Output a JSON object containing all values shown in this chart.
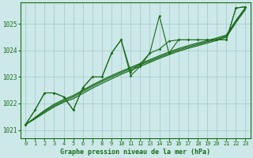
{
  "background_color": "#cce8e8",
  "grid_color": "#aacccc",
  "line_color": "#1a6b1a",
  "xlabel": "Graphe pression niveau de la mer (hPa)",
  "xlim": [
    -0.5,
    23.5
  ],
  "ylim": [
    1020.7,
    1025.8
  ],
  "yticks": [
    1021,
    1022,
    1023,
    1024,
    1025
  ],
  "xticks": [
    0,
    1,
    2,
    3,
    4,
    5,
    6,
    7,
    8,
    9,
    10,
    11,
    12,
    13,
    14,
    15,
    16,
    17,
    18,
    19,
    20,
    21,
    22,
    23
  ],
  "series1": [
    1021.2,
    1021.75,
    1022.4,
    1022.4,
    1022.25,
    1021.75,
    1022.6,
    1023.0,
    1023.0,
    1023.9,
    1024.4,
    1023.05,
    1023.4,
    1023.9,
    1025.3,
    1023.9,
    1024.4,
    1024.4,
    1024.4,
    1024.4,
    1024.4,
    1024.4,
    1025.6,
    1025.65
  ],
  "series2": [
    1021.2,
    1021.75,
    1022.4,
    1022.4,
    1022.25,
    1021.75,
    1022.6,
    1023.0,
    1023.0,
    1023.9,
    1024.4,
    1023.2,
    1023.5,
    1023.9,
    1024.05,
    1024.35,
    1024.4,
    1024.4,
    1024.4,
    1024.4,
    1024.4,
    1024.4,
    1025.6,
    1025.65
  ],
  "trend1": [
    1021.2,
    1021.42,
    1021.65,
    1021.87,
    1022.05,
    1022.18,
    1022.38,
    1022.58,
    1022.76,
    1022.93,
    1023.1,
    1023.25,
    1023.4,
    1023.55,
    1023.7,
    1023.84,
    1023.97,
    1024.08,
    1024.18,
    1024.28,
    1024.38,
    1024.5,
    1025.05,
    1025.55
  ],
  "trend2": [
    1021.2,
    1021.45,
    1021.7,
    1021.92,
    1022.1,
    1022.25,
    1022.45,
    1022.65,
    1022.83,
    1023.0,
    1023.16,
    1023.31,
    1023.46,
    1023.6,
    1023.75,
    1023.89,
    1024.02,
    1024.13,
    1024.23,
    1024.33,
    1024.42,
    1024.54,
    1025.1,
    1025.6
  ],
  "trend3": [
    1021.2,
    1021.47,
    1021.74,
    1021.97,
    1022.15,
    1022.3,
    1022.5,
    1022.7,
    1022.88,
    1023.05,
    1023.21,
    1023.36,
    1023.51,
    1023.65,
    1023.8,
    1023.94,
    1024.07,
    1024.18,
    1024.28,
    1024.37,
    1024.47,
    1024.58,
    1025.13,
    1025.62
  ]
}
